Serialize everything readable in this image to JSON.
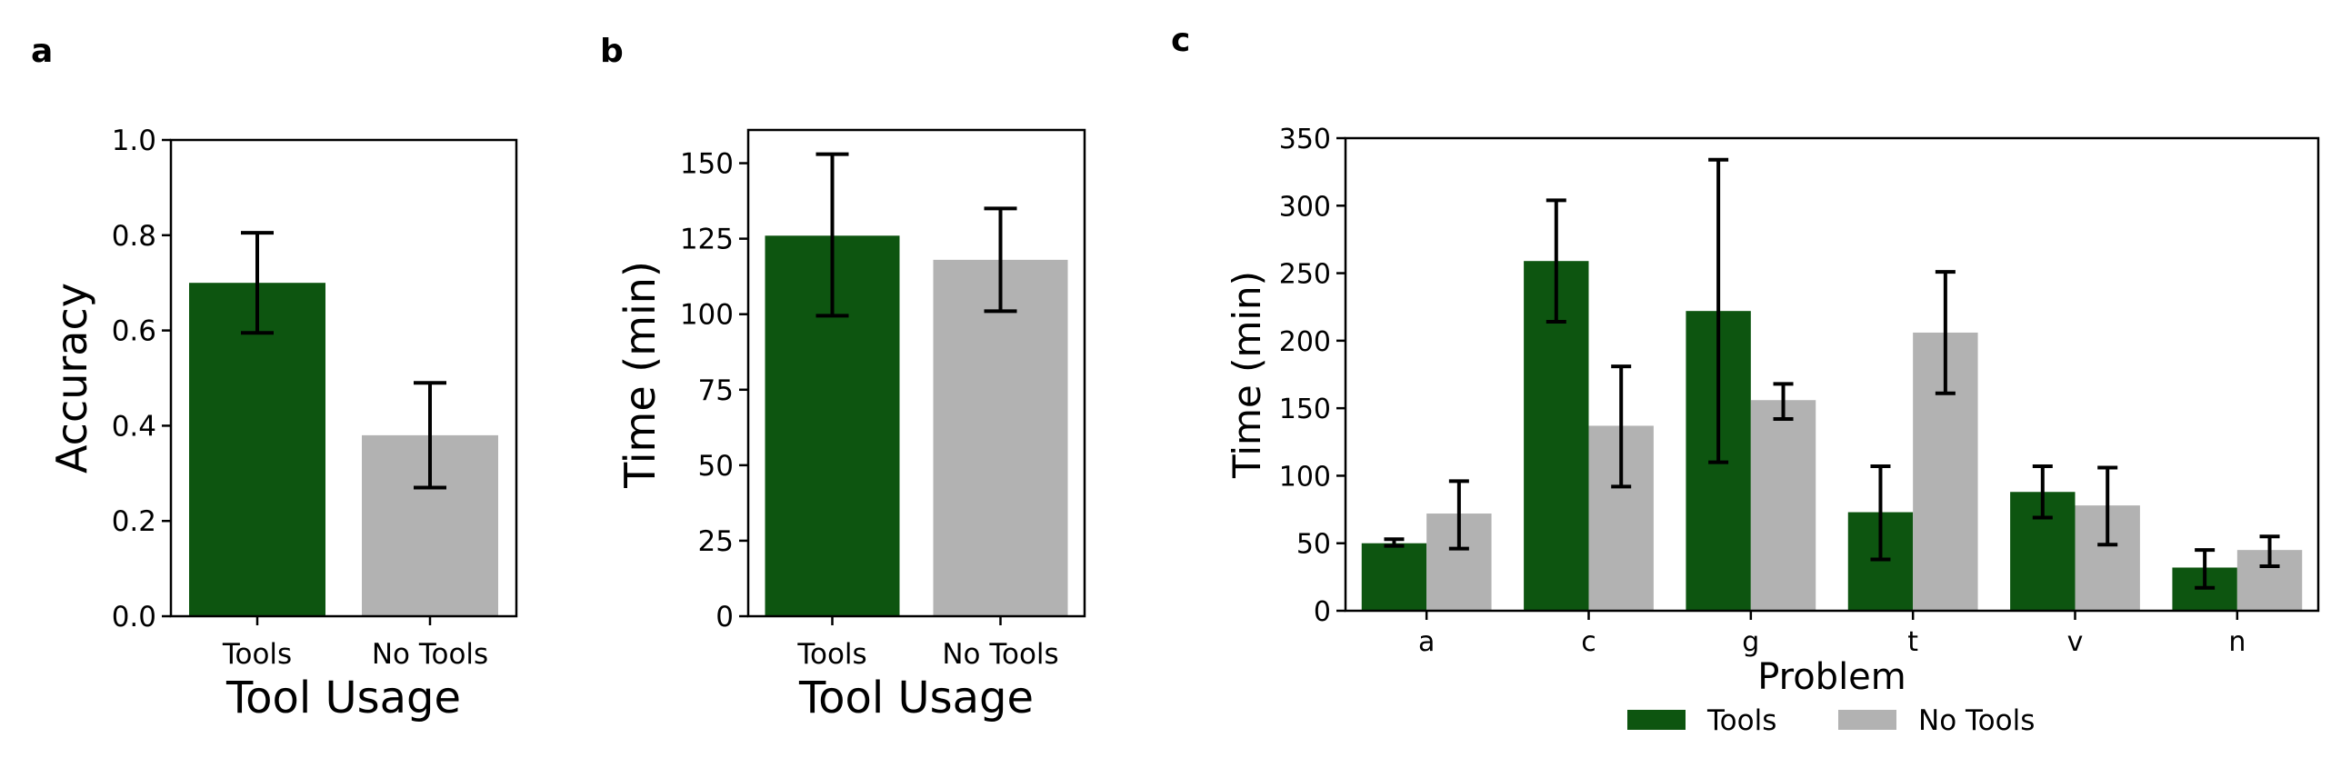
{
  "colors": {
    "tools": "#0d5510",
    "no_tools": "#b2b2b2",
    "error_bar": "#000000",
    "axis": "#000000"
  },
  "chart_data": [
    {
      "panel": "a",
      "type": "bar",
      "categories": [
        "Tools",
        "No Tools"
      ],
      "values": [
        0.7,
        0.38
      ],
      "error_low": [
        0.595,
        0.27
      ],
      "error_high": [
        0.805,
        0.49
      ],
      "xlabel": "Tool Usage",
      "ylabel": "Accuracy",
      "ylim": [
        0,
        1.0
      ],
      "yticks": [
        "0.0",
        "0.2",
        "0.4",
        "0.6",
        "0.8",
        "1.0"
      ],
      "ytick_values": [
        0,
        0.2,
        0.4,
        0.6,
        0.8,
        1.0
      ]
    },
    {
      "panel": "b",
      "type": "bar",
      "categories": [
        "Tools",
        "No Tools"
      ],
      "values": [
        126,
        118
      ],
      "error_low": [
        99.5,
        101
      ],
      "error_high": [
        153,
        135
      ],
      "xlabel": "Tool Usage",
      "ylabel": "Time (min)",
      "ylim": [
        0,
        161
      ],
      "yticks": [
        "0",
        "25",
        "50",
        "75",
        "100",
        "125",
        "150"
      ],
      "ytick_values": [
        0,
        25,
        50,
        75,
        100,
        125,
        150
      ]
    },
    {
      "panel": "c",
      "type": "bar",
      "categories": [
        "a",
        "c",
        "g",
        "t",
        "v",
        "n"
      ],
      "series": [
        {
          "name": "Tools",
          "values": [
            50,
            259,
            222,
            73,
            88,
            32
          ],
          "error_low": [
            48,
            214,
            110,
            38,
            69,
            17
          ],
          "error_high": [
            53,
            304,
            334,
            107,
            107,
            45
          ]
        },
        {
          "name": "No Tools",
          "values": [
            72,
            137,
            156,
            206,
            78,
            45
          ],
          "error_low": [
            46,
            92,
            142,
            161,
            49,
            33
          ],
          "error_high": [
            96,
            181,
            168,
            251,
            106,
            55
          ]
        }
      ],
      "xlabel": "Problem",
      "ylabel": "Time (min)",
      "ylim": [
        0,
        350
      ],
      "yticks": [
        "0",
        "50",
        "100",
        "150",
        "200",
        "250",
        "300",
        "350"
      ],
      "ytick_values": [
        0,
        50,
        100,
        150,
        200,
        250,
        300,
        350
      ],
      "legend": [
        "Tools",
        "No Tools"
      ],
      "legend_position": "bottom-center"
    }
  ]
}
